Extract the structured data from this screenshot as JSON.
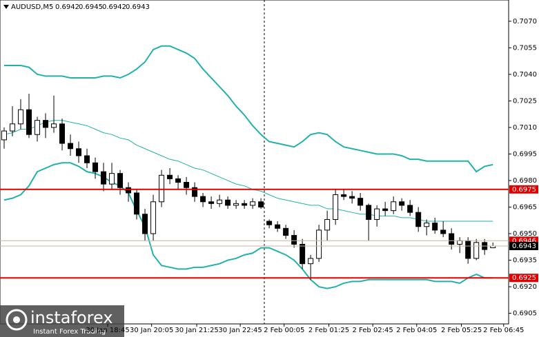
{
  "chart_data": {
    "type": "candlestick",
    "title": "AUDUSD,M5",
    "watermark": {
      "brand": "instaforex",
      "slogan": "Instant Forex Trading"
    },
    "candle_color": "#000000",
    "open": [
      0.7003,
      0.7008,
      0.7012,
      0.702,
      0.7006,
      0.7014,
      0.701,
      0.7012,
      0.7001,
      0.6998,
      0.6994,
      0.699,
      0.6985,
      0.6978,
      0.6984,
      0.6976,
      0.6973,
      0.6961,
      0.695,
      0.6968,
      0.6983,
      0.6981,
      0.6979,
      0.6976,
      0.6971,
      0.6968,
      0.6967,
      0.6969,
      0.6966,
      0.6967,
      0.6966,
      0.6968,
      0.6957,
      0.6955,
      0.6953,
      0.6949,
      0.6944,
      0.6933,
      0.6936,
      0.6952,
      0.6958,
      0.6972,
      0.6971,
      0.697,
      0.6966,
      0.6958,
      0.6964,
      0.6963,
      0.6968,
      0.6966,
      0.6962,
      0.6954,
      0.6956,
      0.6952,
      0.695,
      0.6944,
      0.6946,
      0.6936,
      0.6945,
      0.6942
    ],
    "high": [
      0.701,
      0.7022,
      0.7026,
      0.7029,
      0.7016,
      0.7018,
      0.7028,
      0.7015,
      0.7006,
      0.7002,
      0.6998,
      0.6993,
      0.699,
      0.699,
      0.6986,
      0.6979,
      0.6975,
      0.6964,
      0.6972,
      0.6986,
      0.6987,
      0.6983,
      0.6982,
      0.6979,
      0.6973,
      0.6971,
      0.6972,
      0.6971,
      0.6969,
      0.6969,
      0.697,
      0.697,
      0.6958,
      0.6957,
      0.6955,
      0.6952,
      0.6947,
      0.6938,
      0.6955,
      0.6963,
      0.6975,
      0.6975,
      0.6974,
      0.6973,
      0.6967,
      0.6966,
      0.6968,
      0.6971,
      0.697,
      0.6969,
      0.6965,
      0.6958,
      0.6959,
      0.6957,
      0.6953,
      0.6948,
      0.6948,
      0.6947,
      0.6947,
      0.6945
    ],
    "low": [
      0.6998,
      0.7005,
      0.7009,
      0.7004,
      0.7002,
      0.7004,
      0.7007,
      0.6997,
      0.6994,
      0.699,
      0.6987,
      0.6981,
      0.6974,
      0.6975,
      0.6972,
      0.6968,
      0.6958,
      0.6946,
      0.6946,
      0.6965,
      0.6978,
      0.6975,
      0.6972,
      0.6968,
      0.6965,
      0.6964,
      0.6965,
      0.6964,
      0.6964,
      0.6964,
      0.6964,
      0.6964,
      0.6953,
      0.6951,
      0.6947,
      0.6942,
      0.693,
      0.6924,
      0.6934,
      0.6946,
      0.6955,
      0.6969,
      0.6967,
      0.6963,
      0.6946,
      0.6954,
      0.696,
      0.6961,
      0.6963,
      0.696,
      0.6951,
      0.6949,
      0.695,
      0.6948,
      0.6941,
      0.6939,
      0.6933,
      0.6935,
      0.6938,
      0.6942
    ],
    "close": [
      0.7008,
      0.7012,
      0.702,
      0.7006,
      0.7014,
      0.701,
      0.7012,
      0.7001,
      0.6998,
      0.6994,
      0.699,
      0.6985,
      0.6978,
      0.6984,
      0.6976,
      0.6973,
      0.6961,
      0.695,
      0.6968,
      0.6983,
      0.6981,
      0.6979,
      0.6976,
      0.6971,
      0.6968,
      0.6967,
      0.6969,
      0.6966,
      0.6967,
      0.6966,
      0.6968,
      0.6965,
      0.6955,
      0.6953,
      0.6949,
      0.6944,
      0.6933,
      0.6936,
      0.6952,
      0.6958,
      0.6972,
      0.6971,
      0.697,
      0.6966,
      0.6958,
      0.6964,
      0.6963,
      0.6968,
      0.6966,
      0.6962,
      0.6954,
      0.6956,
      0.6952,
      0.695,
      0.6944,
      0.6946,
      0.6936,
      0.6945,
      0.6941,
      0.6943
    ],
    "overlays": [
      {
        "color": "#20b2aa",
        "width": 2,
        "values": [
          0.7045,
          0.7045,
          0.7045,
          0.7044,
          0.704,
          0.7039,
          0.7039,
          0.7039,
          0.7038,
          0.7038,
          0.7038,
          0.7038,
          0.7039,
          0.7039,
          0.7038,
          0.704,
          0.7043,
          0.7047,
          0.7054,
          0.7056,
          0.7056,
          0.7054,
          0.7052,
          0.7049,
          0.7043,
          0.7038,
          0.7033,
          0.7028,
          0.7022,
          0.7017,
          0.7011,
          0.7006,
          0.7002,
          0.7001,
          0.7,
          0.6999,
          0.7002,
          0.7006,
          0.7007,
          0.7006,
          0.7002,
          0.6999,
          0.6998,
          0.6997,
          0.6996,
          0.6995,
          0.6995,
          0.6995,
          0.6994,
          0.6992,
          0.6992,
          0.6991,
          0.6991,
          0.6991,
          0.6991,
          0.6991,
          0.6991,
          0.6985,
          0.6988,
          0.6989
        ]
      },
      {
        "color": "#20b2aa",
        "width": 1,
        "values": [
          0.7006,
          0.7007,
          0.7009,
          0.7009,
          0.7011,
          0.7013,
          0.7014,
          0.7014,
          0.7013,
          0.7012,
          0.7011,
          0.7009,
          0.7007,
          0.7006,
          0.7004,
          0.7003,
          0.7,
          0.6998,
          0.6996,
          0.6994,
          0.6992,
          0.6991,
          0.6989,
          0.6987,
          0.6986,
          0.6984,
          0.6982,
          0.698,
          0.6978,
          0.6977,
          0.6975,
          0.6974,
          0.6972,
          0.697,
          0.6969,
          0.6968,
          0.6967,
          0.6966,
          0.6966,
          0.6964,
          0.6964,
          0.6963,
          0.6962,
          0.6961,
          0.6961,
          0.696,
          0.696,
          0.696,
          0.6959,
          0.6959,
          0.6958,
          0.6957,
          0.6957,
          0.6957,
          0.6957,
          0.6957,
          0.6957,
          0.6957,
          0.6957,
          0.6957
        ]
      },
      {
        "color": "#20b2aa",
        "width": 2,
        "values": [
          0.6969,
          0.697,
          0.6972,
          0.6977,
          0.6985,
          0.6987,
          0.6989,
          0.699,
          0.699,
          0.6988,
          0.6985,
          0.6984,
          0.6982,
          0.6979,
          0.6977,
          0.6973,
          0.6963,
          0.6954,
          0.6938,
          0.6932,
          0.6931,
          0.693,
          0.693,
          0.6931,
          0.6931,
          0.6932,
          0.6933,
          0.6935,
          0.6936,
          0.6938,
          0.6939,
          0.6942,
          0.6942,
          0.694,
          0.6938,
          0.6935,
          0.693,
          0.6924,
          0.692,
          0.6919,
          0.692,
          0.6922,
          0.6923,
          0.6923,
          0.6924,
          0.6924,
          0.6924,
          0.6924,
          0.6924,
          0.6924,
          0.6924,
          0.6924,
          0.6923,
          0.6923,
          0.6923,
          0.6922,
          0.6925,
          0.6927,
          0.6925,
          0.6925
        ]
      }
    ],
    "levels": [
      {
        "value": 0.6975,
        "label": "0.6975",
        "color": "#e00000",
        "width": 2
      },
      {
        "value": 0.6925,
        "label": "0.6925",
        "color": "#e00000",
        "width": 2
      },
      {
        "value": 0.6946,
        "label": "0.6946",
        "color": "#e00000",
        "width": 1
      },
      {
        "value": 0.6943,
        "label": "0.6943",
        "color": "#000000",
        "width": 1
      }
    ],
    "xlim": [
      -0.5,
      60.9
    ],
    "ylim": [
      0.6899,
      0.7082
    ],
    "xticks": [
      {
        "value": 12.5,
        "label": "30 Jan 18:45"
      },
      {
        "value": 17.8,
        "label": "30 Jan 20:05"
      },
      {
        "value": 23.25,
        "label": "30 Jan 21:25"
      },
      {
        "value": 28.5,
        "label": "30 Jan 22:45"
      },
      {
        "value": 33.8,
        "label": "2 Feb 00:05"
      },
      {
        "value": 39.2,
        "label": "2 Feb 01:25"
      },
      {
        "value": 44.5,
        "label": "2 Feb 02:45"
      },
      {
        "value": 49.8,
        "label": "2 Feb 04:05"
      },
      {
        "value": 55.2,
        "label": "2 Feb 05:25"
      },
      {
        "value": 60.3,
        "label": "2 Feb 06:45"
      }
    ],
    "yticks": [
      {
        "value": 0.707,
        "label": "0.7070"
      },
      {
        "value": 0.7055,
        "label": "0.7055"
      },
      {
        "value": 0.704,
        "label": "0.7040"
      },
      {
        "value": 0.7025,
        "label": "0.7025"
      },
      {
        "value": 0.701,
        "label": "0.7010"
      },
      {
        "value": 0.6995,
        "label": "0.6995"
      },
      {
        "value": 0.698,
        "label": "0.6980"
      },
      {
        "value": 0.6965,
        "label": "0.6965"
      },
      {
        "value": 0.695,
        "label": "0.6950"
      },
      {
        "value": 0.6935,
        "label": "0.6935"
      },
      {
        "value": 0.692,
        "label": "0.6920"
      },
      {
        "value": 0.6905,
        "label": "0.6905"
      }
    ]
  }
}
